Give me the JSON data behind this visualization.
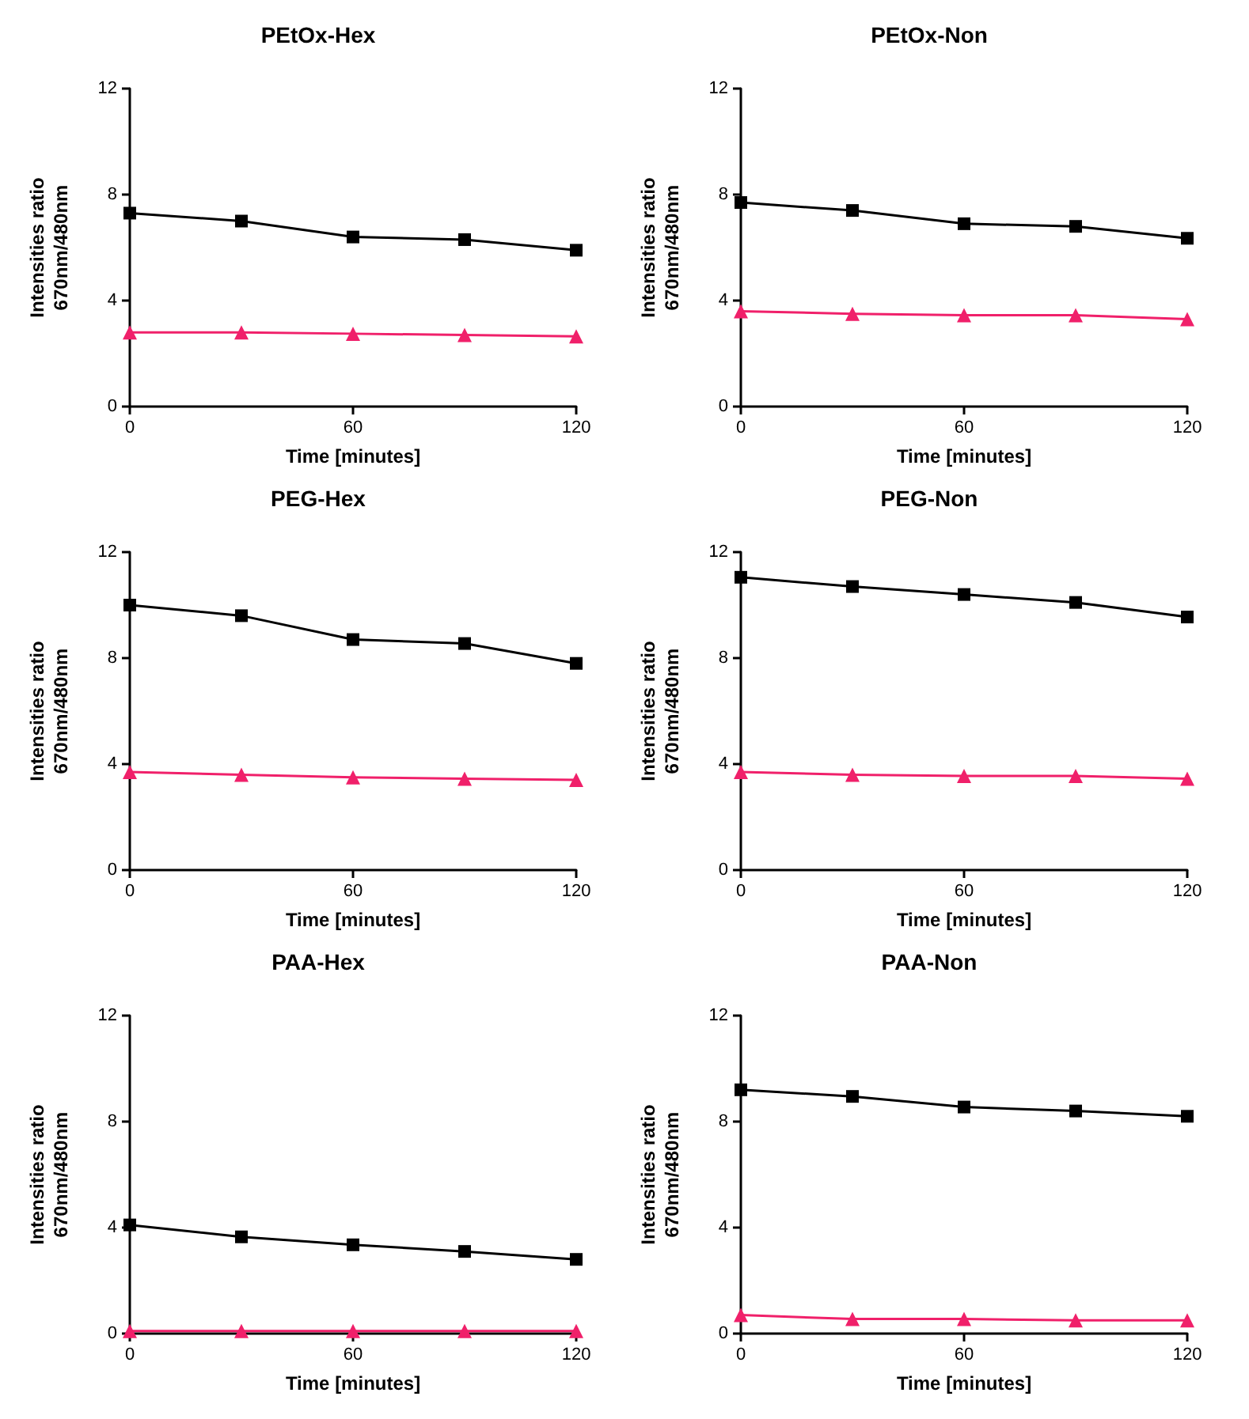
{
  "chart_data": [
    {
      "type": "line",
      "title": "PEtOx-Hex",
      "xlabel": "Time [minutes]",
      "ylabel": "Intensities ratio\n670nm/480nm",
      "x": [
        0,
        30,
        60,
        90,
        120
      ],
      "xlim": [
        0,
        120
      ],
      "xticks": [
        0,
        60,
        120
      ],
      "ylim": [
        0,
        12
      ],
      "yticks": [
        0,
        4,
        8,
        12
      ],
      "series": [
        {
          "color": "#000000",
          "marker": "square",
          "values": [
            7.3,
            7.0,
            6.4,
            6.3,
            5.9
          ]
        },
        {
          "color": "#f0206a",
          "marker": "triangle",
          "values": [
            2.8,
            2.8,
            2.75,
            2.7,
            2.65
          ]
        }
      ]
    },
    {
      "type": "line",
      "title": "PEtOx-Non",
      "xlabel": "Time [minutes]",
      "ylabel": "Intensities ratio\n670nm/480nm",
      "x": [
        0,
        30,
        60,
        90,
        120
      ],
      "xlim": [
        0,
        120
      ],
      "xticks": [
        0,
        60,
        120
      ],
      "ylim": [
        0,
        12
      ],
      "yticks": [
        0,
        4,
        8,
        12
      ],
      "series": [
        {
          "color": "#000000",
          "marker": "square",
          "values": [
            7.7,
            7.4,
            6.9,
            6.8,
            6.35
          ]
        },
        {
          "color": "#f0206a",
          "marker": "triangle",
          "values": [
            3.6,
            3.5,
            3.45,
            3.45,
            3.3
          ]
        }
      ]
    },
    {
      "type": "line",
      "title": "PEG-Hex",
      "xlabel": "Time [minutes]",
      "ylabel": "Intensities ratio\n670nm/480nm",
      "x": [
        0,
        30,
        60,
        90,
        120
      ],
      "xlim": [
        0,
        120
      ],
      "xticks": [
        0,
        60,
        120
      ],
      "ylim": [
        0,
        12
      ],
      "yticks": [
        0,
        4,
        8,
        12
      ],
      "series": [
        {
          "color": "#000000",
          "marker": "square",
          "values": [
            10.0,
            9.6,
            8.7,
            8.55,
            7.8
          ]
        },
        {
          "color": "#f0206a",
          "marker": "triangle",
          "values": [
            3.7,
            3.6,
            3.5,
            3.45,
            3.4
          ]
        }
      ]
    },
    {
      "type": "line",
      "title": "PEG-Non",
      "xlabel": "Time [minutes]",
      "ylabel": "Intensities ratio\n670nm/480nm",
      "x": [
        0,
        30,
        60,
        90,
        120
      ],
      "xlim": [
        0,
        120
      ],
      "xticks": [
        0,
        60,
        120
      ],
      "ylim": [
        0,
        12
      ],
      "yticks": [
        0,
        4,
        8,
        12
      ],
      "series": [
        {
          "color": "#000000",
          "marker": "square",
          "values": [
            11.05,
            10.7,
            10.4,
            10.1,
            9.55
          ]
        },
        {
          "color": "#f0206a",
          "marker": "triangle",
          "values": [
            3.7,
            3.6,
            3.55,
            3.55,
            3.45
          ]
        }
      ]
    },
    {
      "type": "line",
      "title": "PAA-Hex",
      "xlabel": "Time [minutes]",
      "ylabel": "Intensities ratio\n670nm/480nm",
      "x": [
        0,
        30,
        60,
        90,
        120
      ],
      "xlim": [
        0,
        120
      ],
      "xticks": [
        0,
        60,
        120
      ],
      "ylim": [
        0,
        12
      ],
      "yticks": [
        0,
        4,
        8,
        12
      ],
      "series": [
        {
          "color": "#000000",
          "marker": "square",
          "values": [
            4.1,
            3.65,
            3.35,
            3.1,
            2.8
          ]
        },
        {
          "color": "#f0206a",
          "marker": "triangle",
          "values": [
            0.1,
            0.1,
            0.1,
            0.1,
            0.1
          ]
        }
      ]
    },
    {
      "type": "line",
      "title": "PAA-Non",
      "xlabel": "Time [minutes]",
      "ylabel": "Intensities ratio\n670nm/480nm",
      "x": [
        0,
        30,
        60,
        90,
        120
      ],
      "xlim": [
        0,
        120
      ],
      "xticks": [
        0,
        60,
        120
      ],
      "ylim": [
        0,
        12
      ],
      "yticks": [
        0,
        4,
        8,
        12
      ],
      "series": [
        {
          "color": "#000000",
          "marker": "square",
          "values": [
            9.2,
            8.95,
            8.55,
            8.4,
            8.2
          ]
        },
        {
          "color": "#f0206a",
          "marker": "triangle",
          "values": [
            0.7,
            0.55,
            0.55,
            0.5,
            0.5
          ]
        }
      ]
    }
  ]
}
